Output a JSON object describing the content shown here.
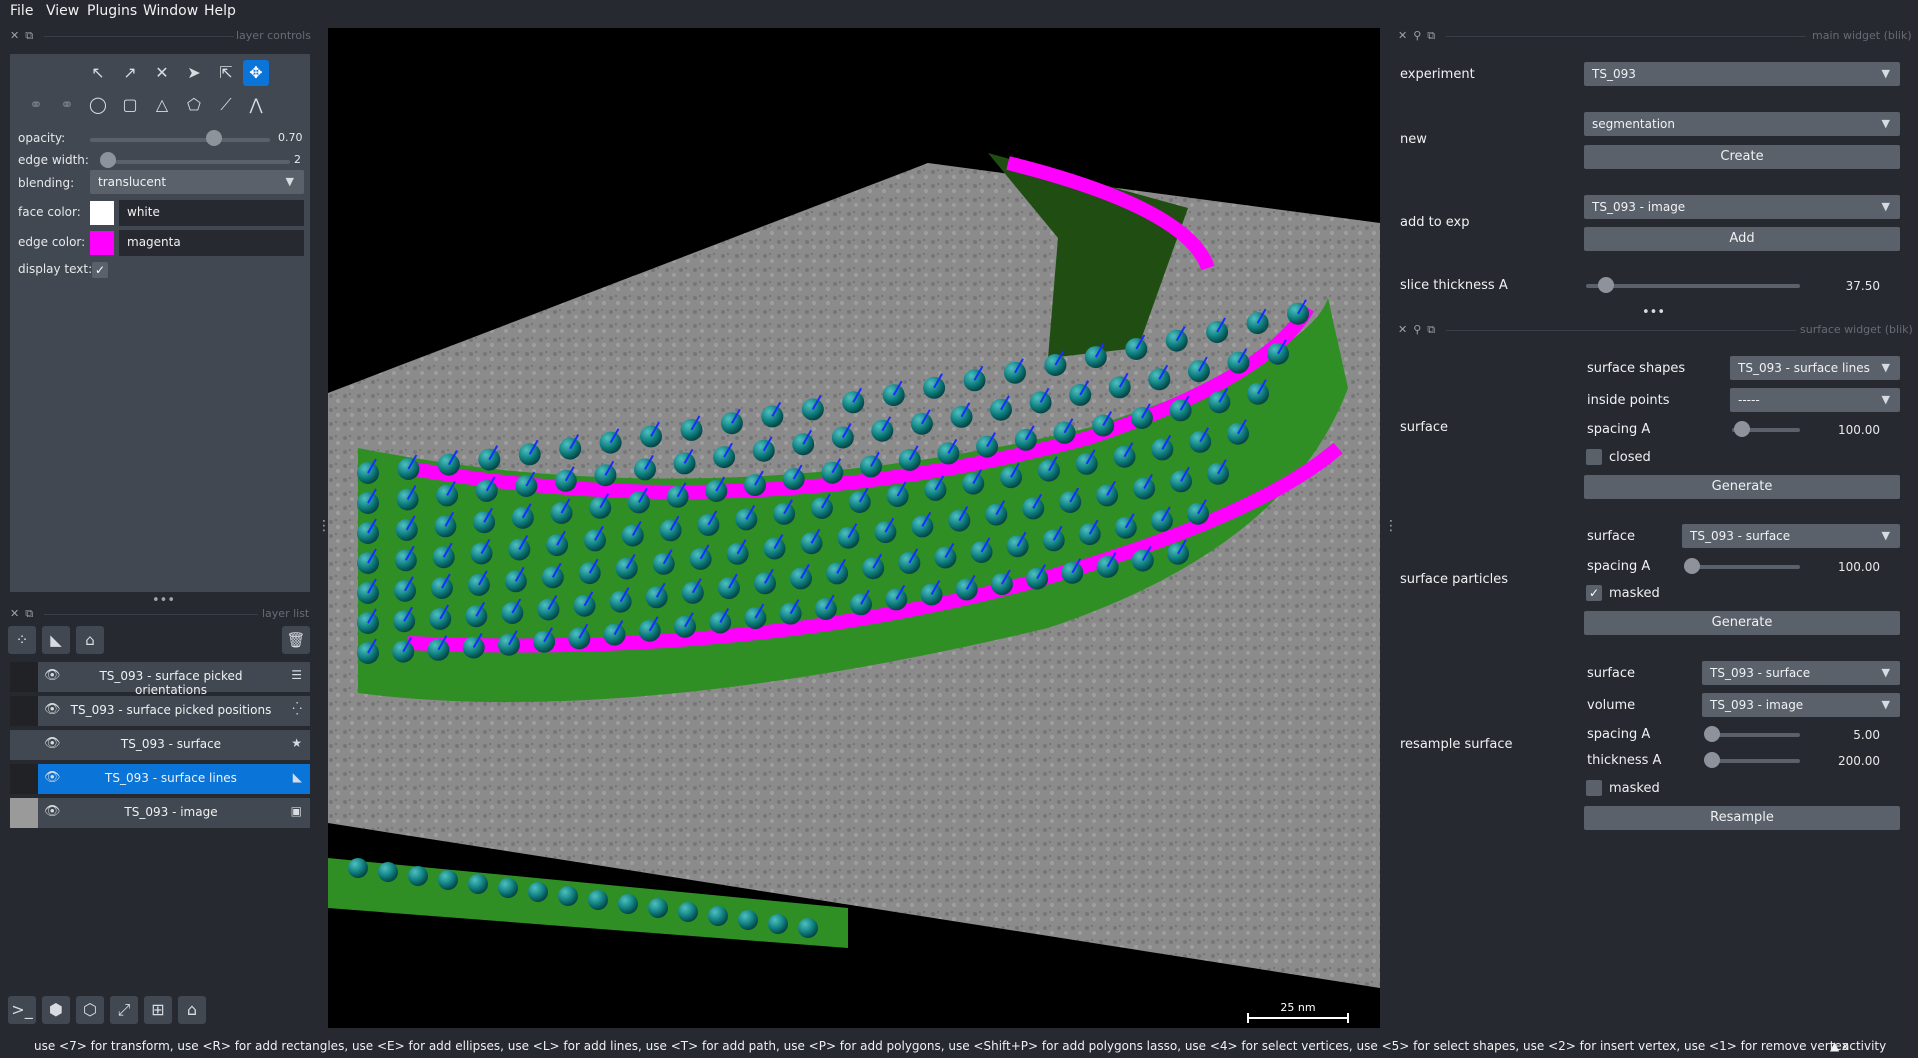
{
  "menu": [
    "File",
    "View",
    "Plugins",
    "Window",
    "Help"
  ],
  "layer_controls": {
    "title": "layer controls",
    "opacity_label": "opacity:",
    "opacity_value": "0.70",
    "opacity_fraction": 0.7,
    "edge_width_label": "edge width:",
    "edge_width_value": "2",
    "blending_label": "blending:",
    "blending_value": "translucent",
    "face_color_label": "face color:",
    "face_color_value": "white",
    "face_color_hex": "#ffffff",
    "edge_color_label": "edge color:",
    "edge_color_value": "magenta",
    "edge_color_hex": "#ff00ff",
    "display_text_label": "display text:",
    "display_text_checked": true
  },
  "layer_list": {
    "title": "layer list",
    "layers": [
      {
        "name": "TS_093 - surface picked orientations",
        "type_icon": "vectors-icon",
        "selected": false
      },
      {
        "name": "TS_093 - surface picked positions",
        "type_icon": "points-icon",
        "selected": false
      },
      {
        "name": "TS_093 - surface",
        "type_icon": "surface-icon",
        "selected": false
      },
      {
        "name": "TS_093 - surface lines",
        "type_icon": "shapes-icon",
        "selected": true
      },
      {
        "name": "TS_093 - image",
        "type_icon": "image-icon",
        "selected": false
      }
    ]
  },
  "canvas": {
    "scale_bar": "25 nm"
  },
  "main_widget": {
    "title": "main widget (blik)",
    "experiment_label": "experiment",
    "experiment_value": "TS_093",
    "new_label": "new",
    "new_value": "segmentation",
    "create_label": "Create",
    "add_to_exp_label": "add to exp",
    "add_to_exp_value": "TS_093 - image",
    "add_label": "Add",
    "slice_thickness_label": "slice thickness A",
    "slice_thickness_value": "37.50"
  },
  "surface_widget": {
    "title": "surface widget (blik)",
    "surface_section": "surface",
    "surface_shapes_label": "surface shapes",
    "surface_shapes_value": "TS_093 - surface lines",
    "inside_points_label": "inside points",
    "inside_points_value": "-----",
    "spacing_label": "spacing A",
    "spacing_value": "100.00",
    "closed_label": "closed",
    "generate_label": "Generate",
    "particles_section": "surface particles",
    "particles_surface_label": "surface",
    "particles_surface_value": "TS_093 - surface",
    "particles_spacing_label": "spacing A",
    "particles_spacing_value": "100.00",
    "masked_label": "masked",
    "particles_generate_label": "Generate",
    "resample_section": "resample surface",
    "resample_surface_label": "surface",
    "resample_surface_value": "TS_093 - surface",
    "volume_label": "volume",
    "volume_value": "TS_093 - image",
    "resample_spacing_label": "spacing A",
    "resample_spacing_value": "5.00",
    "thickness_label": "thickness A",
    "thickness_value": "200.00",
    "resample_masked_label": "masked",
    "resample_label": "Resample"
  },
  "status": {
    "text": "use <7> for transform, use <R> for add rectangles, use <E> for add ellipses, use <L> for add lines, use <T> for add path, use <P> for add polygons, use <Shift+P> for add polygons lasso, use <4> for select vertices, use <5> for select shapes, use <2> for insert vertex, use <1> for remove vertex",
    "activity": "activity"
  },
  "colors": {
    "accent": "#0a74d8",
    "panel": "#414851",
    "background": "#262930"
  }
}
